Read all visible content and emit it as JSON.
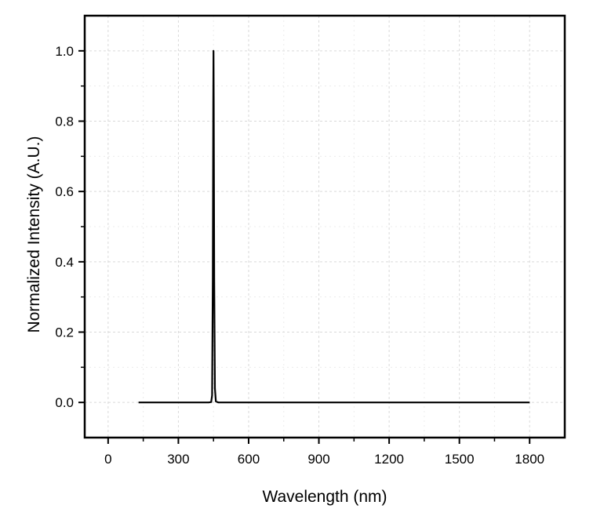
{
  "chart_data": {
    "type": "line",
    "title": "",
    "xlabel": "Wavelength (nm)",
    "ylabel": "Normalized Intensity (A.U.)",
    "xlim": [
      -100,
      1950
    ],
    "ylim": [
      -0.1,
      1.1
    ],
    "xticks": [
      0,
      300,
      600,
      900,
      1200,
      1500,
      1800
    ],
    "xtick_labels": [
      "0",
      "300",
      "600",
      "900",
      "1200",
      "1500",
      "1800"
    ],
    "yticks": [
      0.0,
      0.2,
      0.4,
      0.6,
      0.8,
      1.0
    ],
    "ytick_labels": [
      "0.0",
      "0.2",
      "0.4",
      "0.6",
      "0.8",
      "1.0"
    ],
    "grid": true,
    "legend": "none",
    "series": [
      {
        "color": "#000000",
        "x": [
          130,
          200,
          300,
          400,
          430,
          440,
          444,
          447,
          449,
          450,
          451,
          453,
          456,
          460,
          470,
          500,
          600,
          800,
          1000,
          1200,
          1400,
          1600,
          1800
        ],
        "y": [
          0.0,
          0.0,
          0.0,
          0.0,
          0.0,
          0.001,
          0.02,
          0.35,
          0.85,
          1.0,
          0.85,
          0.35,
          0.04,
          0.003,
          0.0,
          0.0,
          0.0,
          0.0,
          0.0,
          0.0,
          0.0,
          0.0,
          0.0
        ]
      }
    ]
  }
}
